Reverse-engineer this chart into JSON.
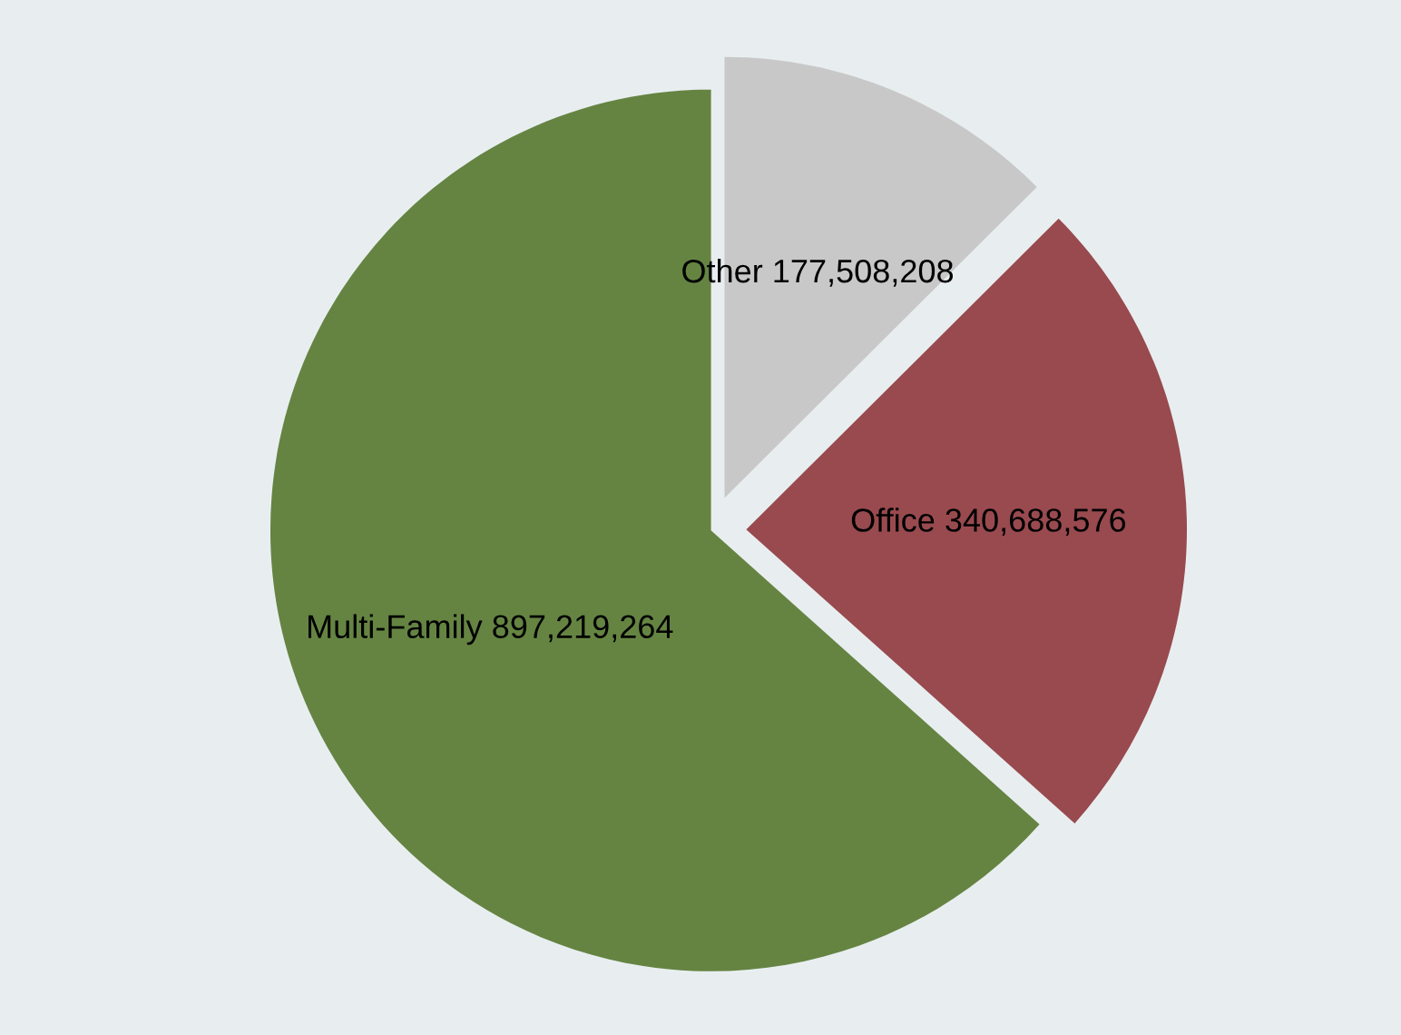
{
  "chart_data": {
    "type": "pie",
    "categories": [
      "Other",
      "Office",
      "Multi-Family"
    ],
    "values": [
      177508208,
      340688576,
      897219264
    ],
    "colors": [
      "#c8c8c8",
      "#984a4f",
      "#658442"
    ],
    "value_labels": [
      "177,508,208",
      "340,688,576",
      "897,219,264"
    ]
  }
}
